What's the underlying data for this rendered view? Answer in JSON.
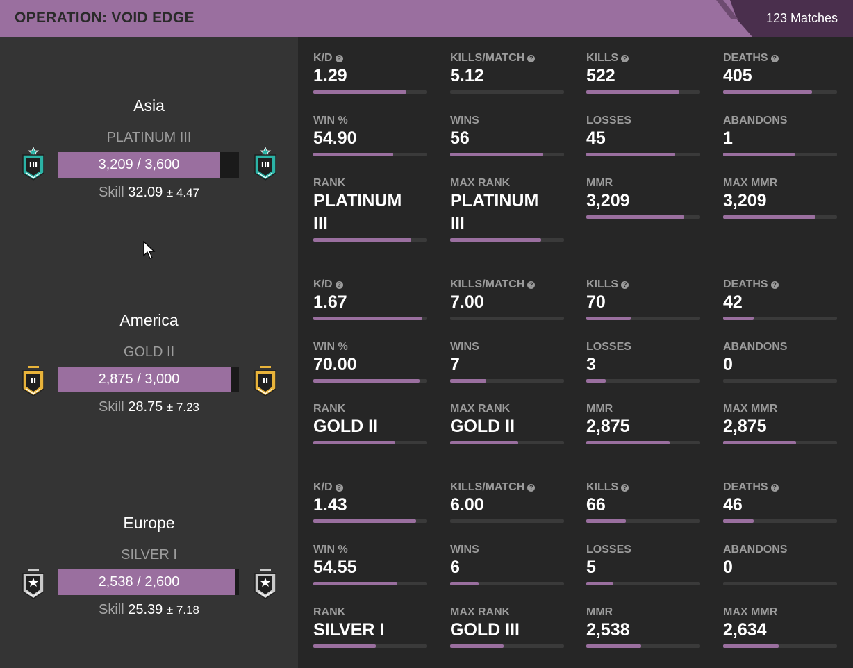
{
  "header": {
    "title": "OPERATION: VOID EDGE",
    "matches": "123 Matches"
  },
  "regions": [
    {
      "name": "Asia",
      "rank": "PLATINUM III",
      "rank_tier": "platinum",
      "rank_numeral": "III",
      "mmr_text": "3,209 / 3,600",
      "mmr_progress": 0.891,
      "skill_label": "Skill",
      "skill_value": "32.09",
      "skill_dev": "± 4.47",
      "stats": [
        {
          "label": "K/D",
          "help": true,
          "value": "1.29",
          "progress": 0.82
        },
        {
          "label": "KILLS/MATCH",
          "help": true,
          "value": "5.12",
          "progress": 0.0
        },
        {
          "label": "KILLS",
          "help": true,
          "value": "522",
          "progress": 0.82
        },
        {
          "label": "DEATHS",
          "help": true,
          "value": "405",
          "progress": 0.78
        },
        {
          "label": "WIN %",
          "help": false,
          "value": "54.90",
          "progress": 0.7
        },
        {
          "label": "WINS",
          "help": false,
          "value": "56",
          "progress": 0.81
        },
        {
          "label": "LOSSES",
          "help": false,
          "value": "45",
          "progress": 0.78
        },
        {
          "label": "ABANDONS",
          "help": false,
          "value": "1",
          "progress": 0.63
        },
        {
          "label": "RANK",
          "help": false,
          "value": "PLATINUM III",
          "progress": 0.86
        },
        {
          "label": "MAX RANK",
          "help": false,
          "value": "PLATINUM III",
          "progress": 0.8
        },
        {
          "label": "MMR",
          "help": false,
          "value": "3,209",
          "progress": 0.86
        },
        {
          "label": "MAX MMR",
          "help": false,
          "value": "3,209",
          "progress": 0.81
        }
      ]
    },
    {
      "name": "America",
      "rank": "GOLD II",
      "rank_tier": "gold",
      "rank_numeral": "II",
      "mmr_text": "2,875 / 3,000",
      "mmr_progress": 0.958,
      "skill_label": "Skill",
      "skill_value": "28.75",
      "skill_dev": "± 7.23",
      "stats": [
        {
          "label": "K/D",
          "help": true,
          "value": "1.67",
          "progress": 0.96
        },
        {
          "label": "KILLS/MATCH",
          "help": true,
          "value": "7.00",
          "progress": 0.0
        },
        {
          "label": "KILLS",
          "help": true,
          "value": "70",
          "progress": 0.39
        },
        {
          "label": "DEATHS",
          "help": true,
          "value": "42",
          "progress": 0.27
        },
        {
          "label": "WIN %",
          "help": false,
          "value": "70.00",
          "progress": 0.93
        },
        {
          "label": "WINS",
          "help": false,
          "value": "7",
          "progress": 0.32
        },
        {
          "label": "LOSSES",
          "help": false,
          "value": "3",
          "progress": 0.17
        },
        {
          "label": "ABANDONS",
          "help": false,
          "value": "0",
          "progress": 0.0
        },
        {
          "label": "RANK",
          "help": false,
          "value": "GOLD II",
          "progress": 0.72
        },
        {
          "label": "MAX RANK",
          "help": false,
          "value": "GOLD II",
          "progress": 0.6
        },
        {
          "label": "MMR",
          "help": false,
          "value": "2,875",
          "progress": 0.73
        },
        {
          "label": "MAX MMR",
          "help": false,
          "value": "2,875",
          "progress": 0.64
        }
      ]
    },
    {
      "name": "Europe",
      "rank": "SILVER I",
      "rank_tier": "silver",
      "rank_numeral": "★",
      "mmr_text": "2,538 / 2,600",
      "mmr_progress": 0.976,
      "skill_label": "Skill",
      "skill_value": "25.39",
      "skill_dev": "± 7.18",
      "stats": [
        {
          "label": "K/D",
          "help": true,
          "value": "1.43",
          "progress": 0.9
        },
        {
          "label": "KILLS/MATCH",
          "help": true,
          "value": "6.00",
          "progress": 0.0
        },
        {
          "label": "KILLS",
          "help": true,
          "value": "66",
          "progress": 0.35
        },
        {
          "label": "DEATHS",
          "help": true,
          "value": "46",
          "progress": 0.27
        },
        {
          "label": "WIN %",
          "help": false,
          "value": "54.55",
          "progress": 0.74
        },
        {
          "label": "WINS",
          "help": false,
          "value": "6",
          "progress": 0.25
        },
        {
          "label": "LOSSES",
          "help": false,
          "value": "5",
          "progress": 0.24
        },
        {
          "label": "ABANDONS",
          "help": false,
          "value": "0",
          "progress": 0.0
        },
        {
          "label": "RANK",
          "help": false,
          "value": "SILVER I",
          "progress": 0.55
        },
        {
          "label": "MAX RANK",
          "help": false,
          "value": "GOLD III",
          "progress": 0.47
        },
        {
          "label": "MMR",
          "help": false,
          "value": "2,538",
          "progress": 0.48
        },
        {
          "label": "MAX MMR",
          "help": false,
          "value": "2,634",
          "progress": 0.49
        }
      ]
    }
  ],
  "colors": {
    "accent": "#9a6f9f",
    "platinum": "#2bb3a6",
    "gold": "#e8b33a",
    "silver": "#c9c9c9"
  }
}
